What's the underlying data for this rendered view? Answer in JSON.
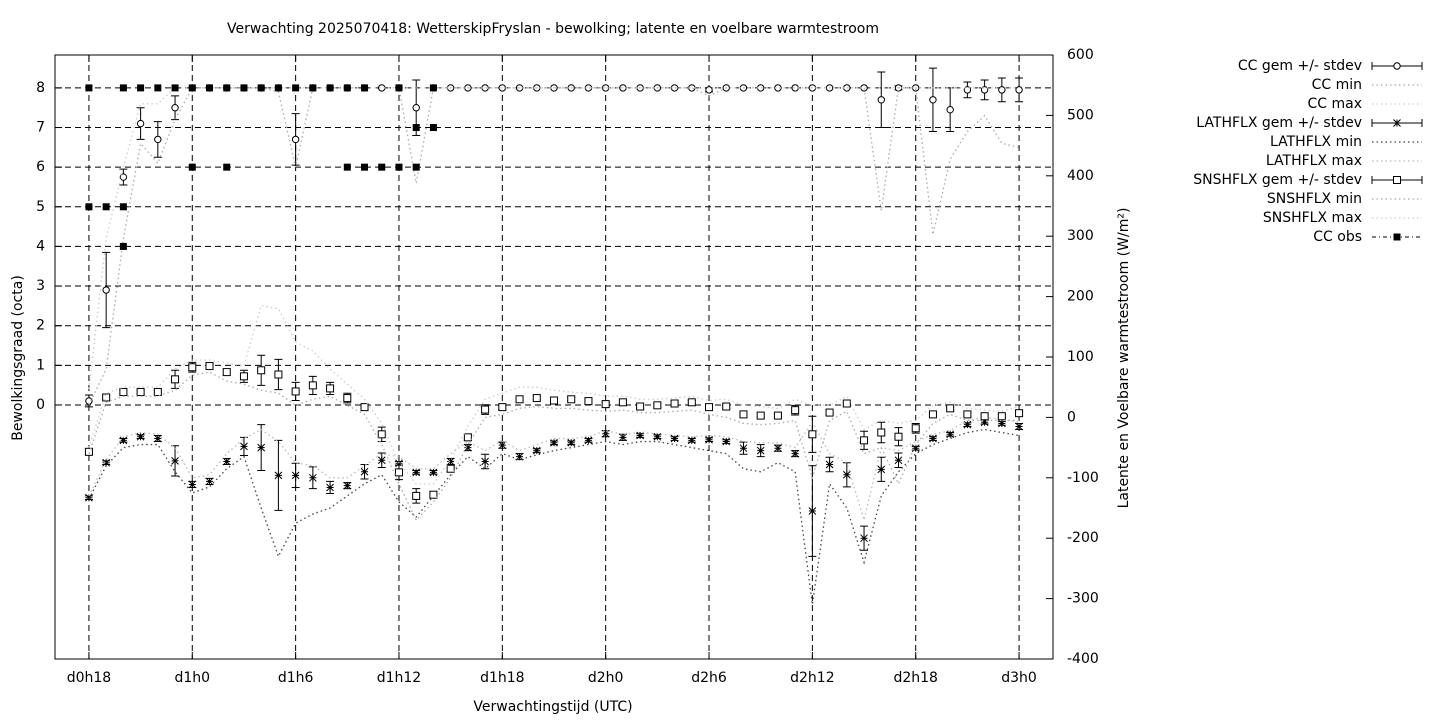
{
  "chart_data": {
    "type": "line",
    "title": "Verwachting 2025070418: WetterskipFryslan - bewolking; latente en voelbare warmtestroom",
    "x_label": "Verwachtingstijd (UTC)",
    "y_label": "Bewolkingsgraad (octa)",
    "y2_label": "Latente en Voelbare warmtestroom (W/m²)",
    "xlim": [
      16.03,
      73.97
    ],
    "xticks": [
      {
        "value": 18,
        "label": "d0h18"
      },
      {
        "value": 24,
        "label": "d1h0"
      },
      {
        "value": 30,
        "label": "d1h6"
      },
      {
        "value": 36,
        "label": "d1h12"
      },
      {
        "value": 42,
        "label": "d1h18"
      },
      {
        "value": 48,
        "label": "d2h0"
      },
      {
        "value": 54,
        "label": "d2h6"
      },
      {
        "value": 60,
        "label": "d2h12"
      },
      {
        "value": 66,
        "label": "d2h18"
      },
      {
        "value": 72,
        "label": "d3h0"
      }
    ],
    "ylim": [
      -6.41,
      8.83
    ],
    "yticks": [
      0,
      1,
      2,
      3,
      4,
      5,
      6,
      7,
      8
    ],
    "y2lim": [
      -400,
      600
    ],
    "y2ticks": [
      -400,
      -300,
      -200,
      -100,
      0,
      100,
      200,
      300,
      400,
      500,
      600
    ],
    "grid": true,
    "legend": "outside-top-right",
    "x": [
      18,
      19,
      20,
      21,
      22,
      23,
      24,
      25,
      26,
      27,
      28,
      29,
      30,
      31,
      32,
      33,
      34,
      35,
      36,
      37,
      38,
      39,
      40,
      41,
      42,
      43,
      44,
      45,
      46,
      47,
      48,
      49,
      50,
      51,
      52,
      53,
      54,
      55,
      56,
      57,
      58,
      59,
      60,
      61,
      62,
      63,
      64,
      65,
      66,
      67,
      68,
      69,
      70,
      71,
      72
    ],
    "series": [
      {
        "name": "CC gem +/- stdev",
        "color": "#000000",
        "marker": "circle",
        "style": "errorbar",
        "values": [
          0.1,
          2.9,
          5.75,
          7.1,
          6.7,
          7.5,
          8,
          8,
          8,
          8,
          8,
          8,
          6.7,
          8,
          8,
          8,
          8,
          8,
          8,
          7.5,
          8,
          8,
          8,
          8,
          8,
          8,
          8,
          8,
          8,
          8,
          8,
          8,
          8,
          8,
          8,
          8,
          7.95,
          8,
          8,
          8,
          8,
          8,
          8,
          8,
          8,
          8,
          7.7,
          8,
          8,
          7.7,
          7.45,
          7.95,
          7.95,
          7.95,
          7.95
        ],
        "stdev": [
          0.15,
          0.95,
          0.2,
          0.4,
          0.45,
          0.3,
          0,
          0,
          0,
          0,
          0,
          0,
          0.65,
          0,
          0,
          0,
          0,
          0,
          0,
          0.7,
          0,
          0,
          0,
          0,
          0,
          0,
          0,
          0,
          0,
          0,
          0,
          0,
          0,
          0,
          0,
          0,
          0.05,
          0,
          0,
          0,
          0,
          0,
          0,
          0,
          0,
          0,
          0.7,
          0.05,
          0,
          0.8,
          0.55,
          0.2,
          0.25,
          0.3,
          0.3
        ]
      },
      {
        "name": "CC min",
        "color": "#aaaaaa",
        "style": "dotted",
        "values": [
          0,
          0.9,
          4.2,
          6.6,
          6.1,
          7.2,
          8,
          8,
          8,
          8,
          8,
          7.9,
          6.0,
          8,
          8,
          8,
          8,
          8,
          8,
          5.6,
          8,
          8,
          8,
          8,
          8,
          8,
          8,
          8,
          8,
          8,
          8,
          8,
          8,
          8,
          8,
          8,
          7.8,
          8,
          8,
          8,
          8,
          8,
          8,
          8,
          8,
          8,
          4.9,
          8,
          8,
          4.3,
          6.2,
          6.9,
          7.3,
          6.6,
          6.5
        ]
      },
      {
        "name": "CC max",
        "color": "#cccccc",
        "style": "dotted",
        "values": [
          0.4,
          4.2,
          6.0,
          7.6,
          7.6,
          8,
          8,
          8,
          8,
          8,
          8,
          8,
          8,
          8,
          8,
          8,
          8,
          8,
          8,
          8,
          8,
          8,
          8,
          8,
          8,
          8,
          8,
          8,
          8,
          8,
          8,
          8,
          8,
          8,
          8,
          8,
          8,
          8,
          8,
          8,
          8,
          8,
          8,
          8,
          8,
          8,
          8,
          8,
          8,
          8,
          8,
          8,
          8,
          8,
          8
        ]
      },
      {
        "name": "LATHFLX gem +/- stdev",
        "color": "#000000",
        "marker": "star",
        "style": "errorbar",
        "axis": "y2",
        "values": [
          -133,
          -75,
          -38,
          -32,
          -35,
          -72,
          -111,
          -106,
          -73,
          -48,
          -50,
          -96,
          -96,
          -100,
          -116,
          -113,
          -90,
          -71,
          -76,
          -91,
          -91,
          -73,
          -50,
          -73,
          -46,
          -65,
          -55,
          -42,
          -42,
          -38,
          -27,
          -33,
          -30,
          -32,
          -35,
          -38,
          -37,
          -40,
          -51,
          -55,
          -51,
          -60,
          -155,
          -78,
          -95,
          -200,
          -86,
          -71,
          -51,
          -35,
          -28,
          -12,
          -8,
          -10,
          -15
        ],
        "stdev": [
          3,
          3,
          3,
          3,
          5,
          25,
          5,
          5,
          5,
          15,
          38,
          58,
          20,
          18,
          10,
          5,
          12,
          12,
          3,
          3,
          3,
          5,
          5,
          12,
          5,
          5,
          3,
          3,
          3,
          3,
          5,
          5,
          3,
          3,
          3,
          3,
          3,
          3,
          10,
          10,
          5,
          5,
          75,
          12,
          20,
          20,
          20,
          12,
          3,
          3,
          3,
          3,
          3,
          3,
          5
        ]
      },
      {
        "name": "LATHFLX min",
        "color": "#444444",
        "style": "dotted",
        "axis": "y2",
        "values": [
          -135,
          -80,
          -50,
          -45,
          -45,
          -90,
          -125,
          -115,
          -85,
          -65,
          -150,
          -230,
          -175,
          -160,
          -150,
          -130,
          -110,
          -95,
          -140,
          -165,
          -130,
          -95,
          -65,
          -85,
          -60,
          -70,
          -62,
          -55,
          -50,
          -45,
          -40,
          -45,
          -40,
          -40,
          -45,
          -50,
          -55,
          -60,
          -85,
          -90,
          -75,
          -90,
          -310,
          -110,
          -150,
          -240,
          -130,
          -90,
          -60,
          -45,
          -35,
          -25,
          -20,
          -25,
          -30
        ]
      },
      {
        "name": "LATHFLX max",
        "color": "#bbbbbb",
        "style": "dotted",
        "axis": "y2",
        "values": [
          -130,
          -70,
          -32,
          -25,
          -28,
          -50,
          -100,
          -95,
          -60,
          -35,
          -20,
          -40,
          -75,
          -80,
          -100,
          -100,
          -80,
          -60,
          -65,
          -85,
          -85,
          -60,
          -40,
          -55,
          -38,
          -55,
          -45,
          -35,
          -35,
          -32,
          -22,
          -28,
          -25,
          -27,
          -30,
          -32,
          -30,
          -32,
          -40,
          -42,
          -42,
          -50,
          -8,
          -60,
          -75,
          -170,
          -50,
          -55,
          -40,
          -28,
          -22,
          -5,
          0,
          -3,
          -8
        ]
      },
      {
        "name": "SNSHFLX gem +/- stdev",
        "color": "#000000",
        "marker": "square",
        "style": "errorbar",
        "axis": "y2",
        "values": [
          -57,
          33,
          42,
          42,
          42,
          63,
          83,
          85,
          75,
          68,
          78,
          71,
          43,
          53,
          48,
          32,
          17,
          -28,
          -91,
          -130,
          -128,
          -85,
          -33,
          13,
          17,
          30,
          32,
          28,
          30,
          27,
          22,
          25,
          18,
          20,
          23,
          25,
          17,
          18,
          5,
          3,
          3,
          12,
          -28,
          8,
          23,
          -38,
          -25,
          -32,
          -18,
          5,
          15,
          5,
          2,
          2,
          7
        ],
        "stdev": [
          5,
          3,
          3,
          3,
          3,
          15,
          8,
          5,
          5,
          10,
          25,
          25,
          15,
          15,
          10,
          8,
          3,
          12,
          12,
          12,
          5,
          5,
          5,
          8,
          3,
          3,
          3,
          3,
          3,
          3,
          3,
          3,
          3,
          3,
          3,
          3,
          3,
          3,
          3,
          3,
          3,
          8,
          30,
          3,
          3,
          15,
          17,
          15,
          8,
          3,
          3,
          3,
          3,
          3,
          5
        ]
      },
      {
        "name": "SNSHFLX min",
        "color": "#aaaaaa",
        "style": "dotted",
        "axis": "y2",
        "values": [
          -60,
          25,
          35,
          35,
          35,
          45,
          70,
          75,
          60,
          55,
          45,
          40,
          20,
          30,
          35,
          20,
          5,
          -45,
          -110,
          -170,
          -140,
          -100,
          -45,
          0,
          5,
          15,
          18,
          15,
          15,
          12,
          10,
          12,
          8,
          8,
          10,
          12,
          5,
          0,
          -10,
          -12,
          -10,
          -5,
          -100,
          -5,
          10,
          -60,
          -50,
          -110,
          -45,
          -10,
          5,
          -5,
          -5,
          -5,
          -5
        ]
      },
      {
        "name": "SNSHFLX max",
        "color": "#cccccc",
        "style": "dotted",
        "axis": "y2",
        "values": [
          -50,
          40,
          50,
          50,
          50,
          80,
          95,
          95,
          90,
          85,
          185,
          180,
          125,
          110,
          80,
          55,
          30,
          -10,
          -75,
          -110,
          -110,
          -70,
          -15,
          30,
          40,
          50,
          50,
          45,
          42,
          40,
          35,
          35,
          30,
          30,
          32,
          35,
          28,
          30,
          20,
          18,
          15,
          30,
          20,
          20,
          35,
          -20,
          -5,
          -10,
          -5,
          20,
          25,
          15,
          12,
          10,
          18
        ]
      },
      {
        "name": "CC obs",
        "color": "#000000",
        "marker": "filled-square",
        "style": "points",
        "x": [
          18,
          20,
          21,
          22,
          23,
          24,
          25,
          26,
          27,
          28,
          29,
          30,
          31,
          32,
          33,
          34,
          36,
          38,
          18,
          19,
          20,
          20,
          24,
          26,
          33,
          34,
          35,
          36,
          37,
          37,
          38
        ],
        "values": [
          8,
          8,
          8,
          8,
          8,
          8,
          8,
          8,
          8,
          8,
          8,
          8,
          8,
          8,
          8,
          8,
          8,
          8,
          5,
          5,
          5,
          4,
          6,
          6,
          6,
          6,
          6,
          6,
          6,
          7,
          7
        ]
      }
    ]
  }
}
